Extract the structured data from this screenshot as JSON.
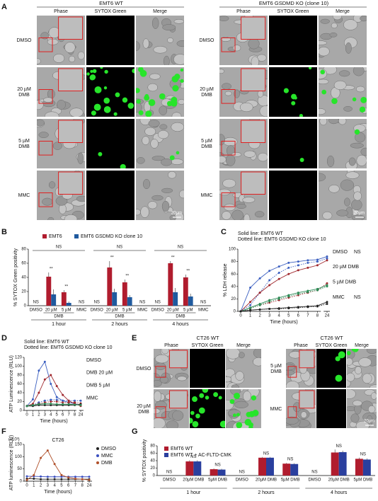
{
  "panel_labels": [
    "A",
    "B",
    "C",
    "D",
    "E",
    "F",
    "G"
  ],
  "panel_a": {
    "groups": [
      "EMT6 WT",
      "EMT6 GSDMD KO (clone 10)"
    ],
    "columns": [
      "Phase",
      "SYTOX Green",
      "Merge"
    ],
    "rows": [
      [
        "DMSO"
      ],
      [
        "20 µM",
        "DMB"
      ],
      [
        "5 µM",
        "DMB"
      ],
      [
        "MMC"
      ]
    ],
    "scale": "20µm"
  },
  "panel_e": {
    "groups": [
      "CT26 WT",
      "CT26 WT"
    ],
    "columns": [
      "Phase",
      "SYTOX Green",
      "Merge"
    ],
    "rows_left": [
      [
        "DMSO"
      ],
      [
        "20 µM",
        "DMB"
      ]
    ],
    "rows_right": [
      [
        "5 µM",
        "DMB"
      ],
      [
        "MMC"
      ]
    ],
    "scale": "20µm"
  },
  "chart_data": [
    {
      "type": "bar",
      "ylabel": "% SYTOX Green positivity",
      "categories": [
        "DMSO",
        "20 µM",
        "5 µM",
        "MMC",
        "DMSO",
        "20 µM",
        "5 µM",
        "MMC",
        "DMSO",
        "20 µM",
        "5 µM",
        "MMC"
      ],
      "groups": [
        "1 hour",
        "2 hours",
        "4 hours"
      ],
      "group_sublabels": [
        "DMB",
        "DMB",
        "DMB"
      ],
      "series": [
        {
          "name": "EMT6",
          "color": "#b01c2e",
          "values": [
            0,
            41,
            19,
            0,
            0,
            54,
            33,
            0,
            0,
            60,
            40,
            0
          ],
          "errors": [
            0,
            6,
            3,
            0,
            0,
            9,
            4,
            0,
            0,
            3,
            4,
            0
          ]
        },
        {
          "name": "EMT6 GSDMD KO clone 10",
          "color": "#1f5a9e",
          "values": [
            0,
            16,
            4,
            0,
            0,
            19,
            12,
            0,
            0,
            19,
            13,
            0
          ],
          "errors": [
            0,
            7,
            2,
            0,
            0,
            5,
            3,
            0,
            0,
            6,
            4,
            0
          ]
        }
      ],
      "ylim": [
        0,
        80
      ],
      "yticks": [
        0,
        20,
        40,
        60,
        80
      ],
      "bar_annotations": [
        "NS",
        "**",
        "**",
        "NS",
        "NS",
        "**",
        "**",
        "NS",
        "NS",
        "**",
        "**",
        "NS"
      ],
      "group_annotations": [
        "NS",
        "NS",
        "NS"
      ]
    },
    {
      "type": "line",
      "legend_note": [
        "Solid line: EMT6 WT",
        "Dotted line: EMT6 GSDMD KO clone 10"
      ],
      "ylabel": "% LDH release",
      "xlabel": "Time (hours)",
      "categories": [
        "0",
        "1",
        "2",
        "3",
        "4",
        "5",
        "6",
        "7",
        "8",
        "24"
      ],
      "ylim": [
        0,
        100
      ],
      "yticks": [
        0,
        20,
        40,
        60,
        80,
        100
      ],
      "series": [
        {
          "color": "#3b5fc0",
          "dashed": false,
          "values": [
            0,
            38,
            53,
            65,
            72,
            78,
            80,
            82,
            83,
            88
          ]
        },
        {
          "color": "#3b5fc0",
          "dashed": true,
          "values": [
            0,
            10,
            30,
            50,
            62,
            70,
            74,
            78,
            80,
            85
          ]
        },
        {
          "color": "#a0282e",
          "dashed": false,
          "values": [
            0,
            15,
            30,
            42,
            52,
            60,
            66,
            70,
            74,
            82
          ]
        },
        {
          "color": "#a0282e",
          "dashed": true,
          "values": [
            0,
            5,
            10,
            14,
            18,
            22,
            26,
            30,
            34,
            45
          ]
        },
        {
          "color": "#2e8b57",
          "dashed": false,
          "values": [
            0,
            6,
            12,
            18,
            22,
            26,
            30,
            33,
            36,
            42
          ]
        },
        {
          "color": "#2e8b57",
          "dashed": true,
          "values": [
            0,
            5,
            10,
            16,
            20,
            24,
            28,
            31,
            34,
            40
          ]
        },
        {
          "color": "#222222",
          "dashed": false,
          "values": [
            0,
            2,
            3,
            4,
            5,
            6,
            7,
            8,
            9,
            15
          ]
        },
        {
          "color": "#222222",
          "dashed": true,
          "values": [
            0,
            2,
            3,
            4,
            4,
            5,
            6,
            7,
            8,
            12
          ]
        }
      ],
      "end_labels": [
        "DMSO",
        "20 µM DMB",
        "5 µM DMB",
        "MMC"
      ],
      "end_notes": [
        "NS",
        null,
        null,
        "NS"
      ]
    },
    {
      "type": "line",
      "legend_note": [
        "Solid line: EMT6 WT",
        "Dotted line: EMT6 GSDMD KO clone 10"
      ],
      "ylabel": "ATP Luminescence (RLU)",
      "xlabel": "Time (hours)",
      "categories": [
        "0",
        "1",
        "2",
        "3",
        "4",
        "5",
        "6",
        "7",
        "8",
        "24"
      ],
      "ylim": [
        0,
        120
      ],
      "yticks": [
        0,
        20,
        40,
        60,
        80,
        100,
        120
      ],
      "series": [
        {
          "color": "#3b5fc0",
          "dashed": false,
          "values": [
            10,
            25,
            90,
            110,
            60,
            30,
            22,
            18,
            15,
            12
          ]
        },
        {
          "color": "#3b5fc0",
          "dashed": true,
          "values": [
            10,
            12,
            18,
            22,
            24,
            24,
            22,
            22,
            22,
            22
          ]
        },
        {
          "color": "#a0282e",
          "dashed": false,
          "values": [
            10,
            15,
            40,
            70,
            80,
            55,
            35,
            22,
            15,
            10
          ]
        },
        {
          "color": "#a0282e",
          "dashed": true,
          "values": [
            10,
            12,
            15,
            18,
            20,
            20,
            18,
            18,
            18,
            16
          ]
        },
        {
          "color": "#222222",
          "dashed": false,
          "values": [
            10,
            10,
            12,
            12,
            12,
            12,
            12,
            12,
            12,
            14
          ]
        },
        {
          "color": "#2e8b57",
          "dashed": false,
          "values": [
            10,
            12,
            14,
            15,
            15,
            14,
            14,
            14,
            13,
            12
          ]
        }
      ],
      "end_labels": [
        "DMSO",
        "DMB 20 µM",
        "DMB 5 µM",
        "MMC"
      ]
    },
    {
      "type": "line",
      "title": "CT26",
      "ylabel": "ATP luminescence (RLU)",
      "yunit": "(x10³)",
      "xlabel": "Time (hours)",
      "categories": [
        "0",
        "1",
        "2",
        "3",
        "4",
        "5",
        "6",
        "7",
        "8",
        "24"
      ],
      "ylim": [
        0,
        150
      ],
      "yticks": [
        0,
        50,
        100,
        150
      ],
      "series": [
        {
          "name": "DMSO",
          "color": "#222222",
          "dashed": false,
          "values": [
            10,
            10,
            8,
            8,
            8,
            8,
            8,
            8,
            8,
            8
          ]
        },
        {
          "name": "MMC",
          "color": "#3b4fc0",
          "dashed": false,
          "values": [
            20,
            20,
            19,
            18,
            18,
            18,
            18,
            18,
            18,
            18
          ]
        },
        {
          "name": "DMB",
          "color": "#b0502a",
          "dashed": false,
          "values": [
            5,
            25,
            95,
            125,
            70,
            25,
            15,
            10,
            8,
            5
          ]
        }
      ]
    },
    {
      "type": "bar",
      "ylabel": "% SYTOX positivity",
      "categories": [
        "DMSO",
        "20µM DMB",
        "5µM DMB",
        "DMSO",
        "20µM DMB",
        "5µM DMB",
        "DMSO",
        "20µM DMB",
        "5µM DMB"
      ],
      "groups": [
        "1 hour",
        "2 hours",
        "4 hours"
      ],
      "series": [
        {
          "name": "EMT6 WT",
          "color": "#b01c2e",
          "values": [
            0,
            38,
            17,
            0,
            48,
            32,
            0,
            62,
            45
          ],
          "errors": [
            0,
            3,
            2,
            0,
            2,
            2,
            0,
            8,
            3
          ]
        },
        {
          "name": "EMT6 WT + AC-FLTD-CMK",
          "color": "#2a3f9e",
          "values": [
            0,
            38,
            16,
            0,
            48,
            31,
            0,
            63,
            43
          ],
          "errors": [
            0,
            3,
            2,
            0,
            2,
            2,
            0,
            4,
            3
          ]
        }
      ],
      "ylim": [
        0,
        80
      ],
      "yticks": [
        0,
        20,
        40,
        60,
        80
      ],
      "bar_annotations": [
        "NS",
        "NS",
        "NS",
        "NS",
        "NS",
        "NS",
        "NS",
        "NS",
        "NS"
      ]
    }
  ]
}
